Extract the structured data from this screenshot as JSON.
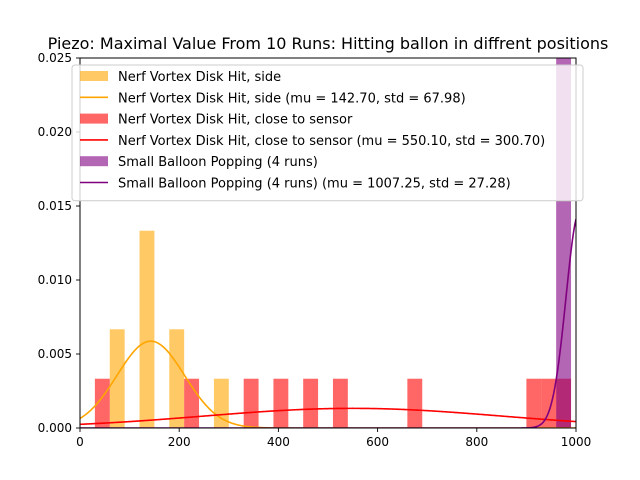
{
  "chart_data": {
    "type": "histogram_with_normal_fits",
    "title": "Piezo: Maximal Value From 10 Runs: Hitting ballon in diffrent positions",
    "xlabel": "",
    "ylabel": "",
    "xlim": [
      0,
      1000
    ],
    "ylim": [
      0,
      0.025
    ],
    "xticks": [
      "0",
      "200",
      "400",
      "600",
      "800",
      "1000"
    ],
    "yticks": [
      "0.000",
      "0.005",
      "0.010",
      "0.015",
      "0.020",
      "0.025"
    ],
    "grid": false,
    "legend_position": "top",
    "series": [
      {
        "name": "Nerf Vortex Disk Hit, side",
        "kind": "hist",
        "color": "#ffa500",
        "alpha": 0.6,
        "bin_width": 30,
        "bins": [
          {
            "x0": 60,
            "x1": 90,
            "density": 0.00667
          },
          {
            "x0": 120,
            "x1": 150,
            "density": 0.01333
          },
          {
            "x0": 180,
            "x1": 210,
            "density": 0.00667
          },
          {
            "x0": 270,
            "x1": 300,
            "density": 0.00333
          }
        ]
      },
      {
        "name": "Nerf Vortex Disk Hit, side (mu = 142.70,  std = 67.98)",
        "kind": "normal",
        "color": "#ffa500",
        "mu": 142.7,
        "std": 67.98
      },
      {
        "name": "Nerf Vortex Disk Hit, close to sensor",
        "kind": "hist",
        "color": "#ff0000",
        "alpha": 0.6,
        "bin_width": 30,
        "bins": [
          {
            "x0": 30,
            "x1": 60,
            "density": 0.00333
          },
          {
            "x0": 210,
            "x1": 240,
            "density": 0.00333
          },
          {
            "x0": 330,
            "x1": 360,
            "density": 0.00333
          },
          {
            "x0": 390,
            "x1": 420,
            "density": 0.00333
          },
          {
            "x0": 450,
            "x1": 480,
            "density": 0.00333
          },
          {
            "x0": 510,
            "x1": 540,
            "density": 0.00333
          },
          {
            "x0": 660,
            "x1": 690,
            "density": 0.00333
          },
          {
            "x0": 900,
            "x1": 930,
            "density": 0.00333
          },
          {
            "x0": 930,
            "x1": 960,
            "density": 0.00333
          },
          {
            "x0": 960,
            "x1": 990,
            "density": 0.00333
          }
        ]
      },
      {
        "name": "Nerf Vortex Disk Hit, close to sensor (mu = 550.10,  std = 300.70)",
        "kind": "normal",
        "color": "#ff0000",
        "mu": 550.1,
        "std": 300.7
      },
      {
        "name": "Small Balloon Popping (4 runs)",
        "kind": "hist",
        "color": "#800080",
        "alpha": 0.6,
        "bin_width": 30,
        "bins": [
          {
            "x0": 960,
            "x1": 990,
            "density": 0.0333
          }
        ]
      },
      {
        "name": "Small Balloon Popping (4 runs) (mu = 1007.25,  std = 27.28)",
        "kind": "normal",
        "color": "#800080",
        "mu": 1007.25,
        "std": 27.28
      }
    ]
  }
}
